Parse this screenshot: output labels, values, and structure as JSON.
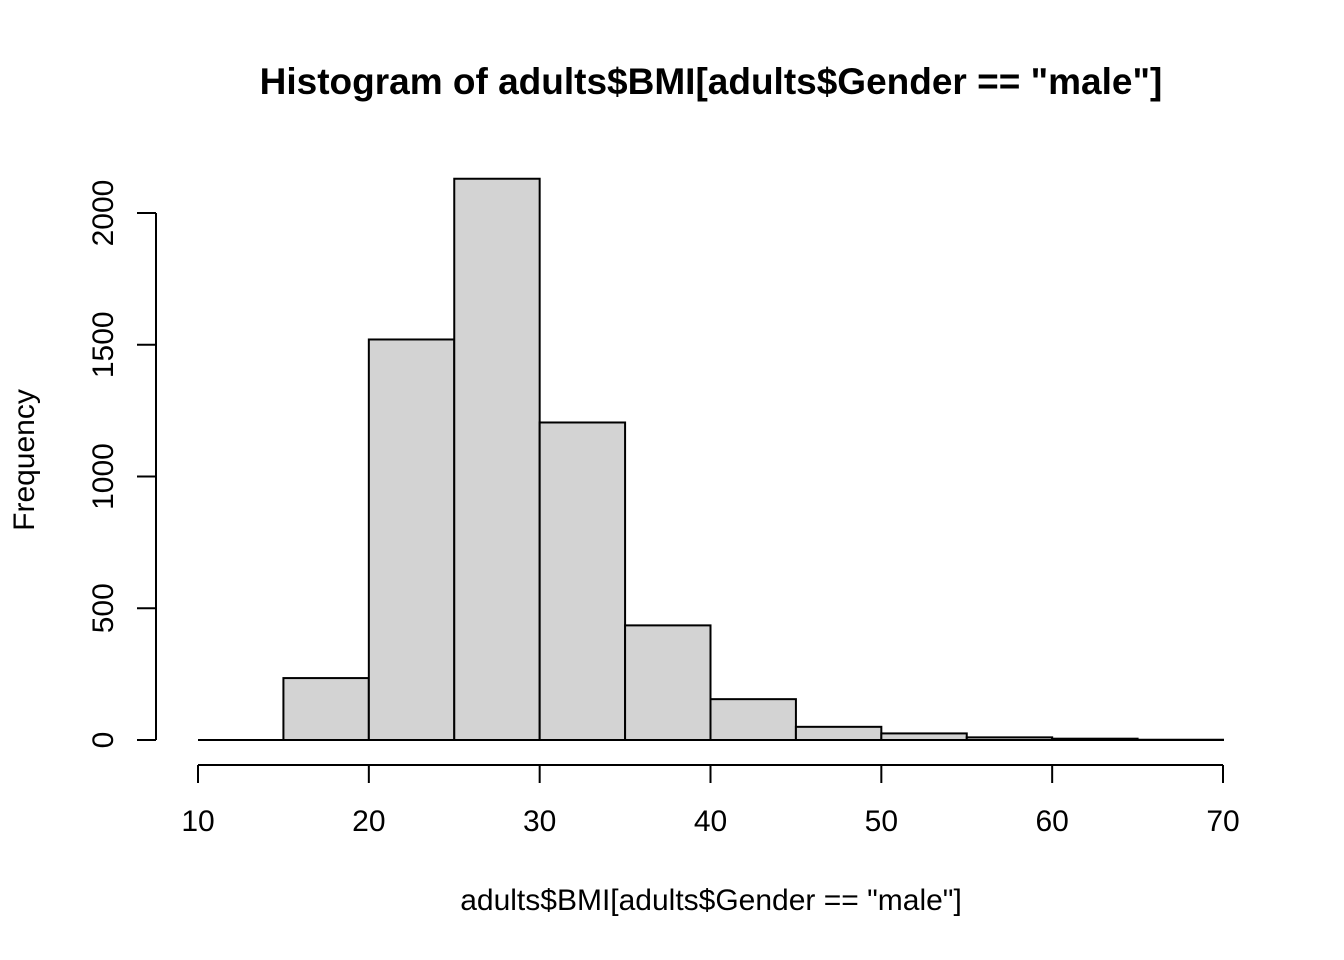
{
  "page": {
    "background_color": "#ffffff"
  },
  "chart_data": {
    "type": "bar",
    "variant": "histogram",
    "title": "Histogram of adults$BMI[adults$Gender == \"male\"]",
    "xlabel": "adults$BMI[adults$Gender == \"male\"]",
    "ylabel": "Frequency",
    "bin_breaks": [
      10,
      15,
      20,
      25,
      30,
      35,
      40,
      45,
      50,
      55,
      60,
      65,
      70
    ],
    "counts": [
      0,
      235,
      1520,
      2130,
      1205,
      435,
      155,
      50,
      25,
      10,
      5,
      1
    ],
    "x_ticks": [
      "10",
      "20",
      "30",
      "40",
      "50",
      "60",
      "70"
    ],
    "x_tick_values": [
      10,
      20,
      30,
      40,
      50,
      60,
      70
    ],
    "y_ticks": [
      "0",
      "500",
      "1000",
      "1500",
      "2000"
    ],
    "y_tick_values": [
      0,
      500,
      1000,
      1500,
      2000
    ],
    "xlim": [
      10,
      70
    ],
    "ylim": [
      0,
      2130
    ],
    "grid": false,
    "legend": false,
    "bar_fill": "#d3d3d3",
    "bar_stroke": "#000000",
    "axis_color": "#000000",
    "text_color": "#000000"
  }
}
